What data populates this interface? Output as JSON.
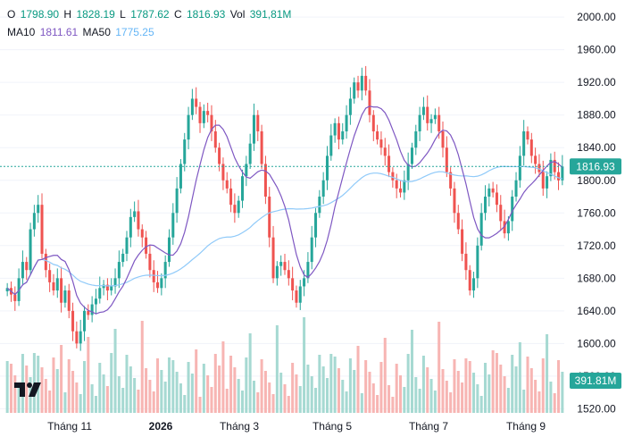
{
  "legend": {
    "o_label": "O",
    "o_value": "1798.90",
    "h_label": "H",
    "h_value": "1828.19",
    "l_label": "L",
    "l_value": "1787.62",
    "c_label": "C",
    "c_value": "1816.93",
    "vol_label": "Vol",
    "vol_value": "391,81M",
    "ma10_label": "MA10",
    "ma10_value": "1811.61",
    "ma50_label": "MA50",
    "ma50_value": "1775.25"
  },
  "colors": {
    "up": "#26a69a",
    "down": "#ef5350",
    "vol_up": "#a6d9d2",
    "vol_down": "#f7b5b3",
    "ma10": "#7e57c2",
    "ma50": "#90caf9",
    "last_price_bg": "#26a69a"
  },
  "chart_data": {
    "type": "candlestick",
    "y_ticks": [
      "2000.00",
      "1960.00",
      "1920.00",
      "1880.00",
      "1840.00",
      "1800.00",
      "1760.00",
      "1720.00",
      "1680.00",
      "1640.00",
      "1600.00",
      "1560.00",
      "1520.00"
    ],
    "ylim": [
      1515,
      2010
    ],
    "x_ticks": [
      "Tháng 11",
      "2026",
      "Tháng 3",
      "Tháng 5",
      "Tháng 7",
      "Tháng 9"
    ],
    "last_price": "1816.93",
    "last_volume": "391.81M",
    "closes": [
      1668,
      1660,
      1652,
      1680,
      1700,
      1690,
      1740,
      1760,
      1770,
      1710,
      1690,
      1675,
      1665,
      1680,
      1650,
      1665,
      1640,
      1615,
      1600,
      1615,
      1640,
      1635,
      1648,
      1655,
      1668,
      1672,
      1665,
      1670,
      1680,
      1700,
      1710,
      1730,
      1755,
      1762,
      1740,
      1730,
      1710,
      1690,
      1675,
      1668,
      1680,
      1700,
      1730,
      1760,
      1790,
      1820,
      1850,
      1880,
      1900,
      1890,
      1870,
      1885,
      1880,
      1860,
      1840,
      1820,
      1800,
      1790,
      1770,
      1760,
      1775,
      1805,
      1820,
      1845,
      1880,
      1860,
      1820,
      1780,
      1730,
      1680,
      1695,
      1700,
      1690,
      1680,
      1665,
      1650,
      1670,
      1680,
      1700,
      1730,
      1760,
      1780,
      1800,
      1830,
      1855,
      1870,
      1850,
      1860,
      1880,
      1900,
      1920,
      1910,
      1928,
      1910,
      1880,
      1860,
      1850,
      1840,
      1830,
      1810,
      1800,
      1790,
      1785,
      1800,
      1820,
      1840,
      1860,
      1880,
      1890,
      1870,
      1875,
      1880,
      1860,
      1840,
      1810,
      1790,
      1760,
      1740,
      1710,
      1690,
      1665,
      1680,
      1720,
      1760,
      1780,
      1790,
      1785,
      1770,
      1750,
      1735,
      1750,
      1780,
      1800,
      1830,
      1860,
      1850,
      1830,
      1820,
      1810,
      1790,
      1805,
      1825,
      1810,
      1800,
      1816.93
    ],
    "ma10_shown": "1811.61",
    "ma50_shown": "1775.25"
  },
  "x_axis_labels": {
    "t0": "Tháng 11",
    "t1": "2026",
    "t2": "Tháng 3",
    "t3": "Tháng 5",
    "t4": "Tháng 7",
    "t5": "Tháng 9"
  }
}
